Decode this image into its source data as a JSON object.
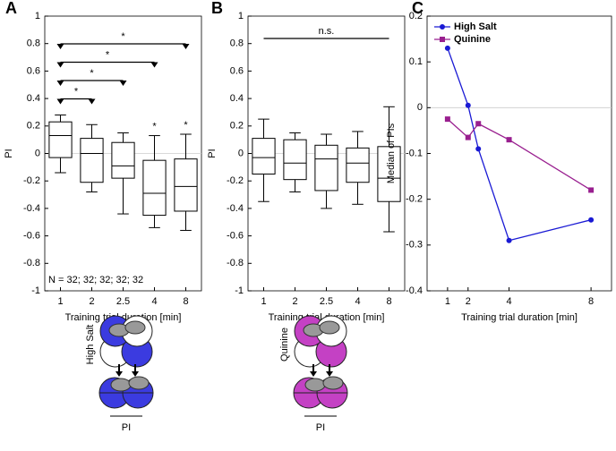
{
  "chart_data": [
    {
      "type": "box",
      "letter": "A",
      "xlabel": "Training trial duration [min]",
      "ylabel": "PI",
      "categories": [
        "1",
        "2",
        "2.5",
        "4",
        "8"
      ],
      "boxes": [
        {
          "min": -0.14,
          "q1": -0.03,
          "median": 0.13,
          "q3": 0.23,
          "max": 0.28
        },
        {
          "min": -0.28,
          "q1": -0.21,
          "median": 0,
          "q3": 0.11,
          "max": 0.21
        },
        {
          "min": -0.44,
          "q1": -0.18,
          "median": -0.09,
          "q3": 0.08,
          "max": 0.15
        },
        {
          "min": -0.54,
          "q1": -0.45,
          "median": -0.29,
          "q3": -0.05,
          "max": 0.13
        },
        {
          "min": -0.56,
          "q1": -0.42,
          "median": -0.24,
          "q3": -0.04,
          "max": 0.14
        }
      ],
      "box_labels": [
        null,
        null,
        null,
        "*",
        "*"
      ],
      "significance": [
        {
          "label": "*"
        },
        {
          "label": "*"
        },
        {
          "label": "*"
        },
        {
          "label": "*"
        }
      ],
      "annotation": "N = 32; 32; 32; 32; 32",
      "ylim": [
        -1,
        1
      ],
      "yticks": [
        -1,
        -0.8,
        -0.6,
        -0.4,
        -0.2,
        0,
        0.2,
        0.4,
        0.6,
        0.8,
        1
      ],
      "zero_line": true,
      "color": "#000000"
    },
    {
      "type": "box",
      "letter": "B",
      "xlabel": "Training trial duration [min]",
      "ylabel": "PI",
      "categories": [
        "1",
        "2",
        "2.5",
        "4",
        "8"
      ],
      "boxes": [
        {
          "min": -0.35,
          "q1": -0.15,
          "median": -0.03,
          "q3": 0.11,
          "max": 0.25
        },
        {
          "min": -0.28,
          "q1": -0.19,
          "median": -0.07,
          "q3": 0.1,
          "max": 0.15
        },
        {
          "min": -0.4,
          "q1": -0.27,
          "median": -0.04,
          "q3": 0.06,
          "max": 0.14
        },
        {
          "min": -0.37,
          "q1": -0.21,
          "median": -0.07,
          "q3": 0.04,
          "max": 0.16
        },
        {
          "min": -0.57,
          "q1": -0.35,
          "median": -0.18,
          "q3": 0.05,
          "max": 0.34
        }
      ],
      "significance": [
        {
          "label": "n.s."
        }
      ],
      "ylim": [
        -1,
        1
      ],
      "yticks": [
        -1,
        -0.8,
        -0.6,
        -0.4,
        -0.2,
        0,
        0.2,
        0.4,
        0.6,
        0.8,
        1
      ],
      "zero_line": true,
      "color": "#000000"
    },
    {
      "type": "line",
      "letter": "C",
      "xlabel": "Training trial duration [min]",
      "ylabel": "Median of PIs",
      "x": [
        1,
        2,
        2.5,
        4,
        8
      ],
      "xlim": [
        0,
        9
      ],
      "xticks": [
        1,
        2,
        4,
        8
      ],
      "ylim": [
        -0.4,
        0.2
      ],
      "yticks": [
        -0.4,
        -0.3,
        -0.2,
        -0.1,
        0,
        0.1,
        0.2
      ],
      "zero_line": true,
      "legend": "upper left",
      "series": [
        {
          "name": "High Salt",
          "color": "#1a1ad4",
          "marker": "circle",
          "values": [
            0.13,
            0.005,
            -0.09,
            -0.29,
            -0.245
          ]
        },
        {
          "name": "Quinine",
          "color": "#991f8f",
          "marker": "square",
          "values": [
            -0.025,
            -0.065,
            -0.035,
            -0.07,
            -0.18
          ]
        }
      ]
    }
  ],
  "illustrations": [
    {
      "label": "High Salt",
      "caption": "PI",
      "color": "#3b3be0"
    },
    {
      "label": "Quinine",
      "caption": "PI",
      "color": "#c441c4"
    }
  ]
}
